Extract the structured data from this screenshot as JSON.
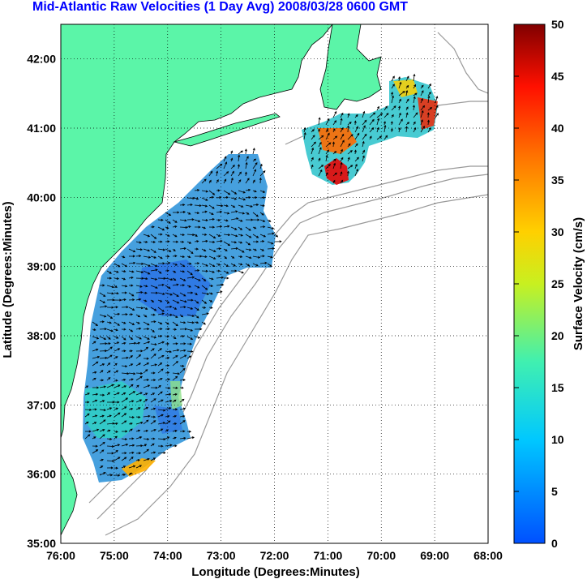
{
  "title": "Mid-Atlantic Raw Velocities (1 Day Avg) 2008/03/28 0600 GMT",
  "xlabel": "Longitude (Degrees:Minutes)",
  "ylabel": "Latitude (Degrees:Minutes)",
  "colorbar_label": "Surface Velocity (cm/s)",
  "x_ticks": [
    "76:00",
    "75:00",
    "74:00",
    "73:00",
    "72:00",
    "71:00",
    "70:00",
    "69:00",
    "68:00"
  ],
  "y_ticks": [
    "42:00",
    "41:00",
    "40:00",
    "39:00",
    "38:00",
    "37:00",
    "36:00",
    "35:00"
  ],
  "colorbar_ticks": [
    "50",
    "45",
    "40",
    "35",
    "30",
    "25",
    "20",
    "15",
    "10",
    "5",
    "0"
  ],
  "colors": {
    "land": "#5bf5a8",
    "title": "#0000ff",
    "bathymetry": "#999999"
  },
  "chart_data": {
    "type": "heatmap",
    "title": "Mid-Atlantic Raw Velocities (1 Day Avg) 2008/03/28 0600 GMT",
    "xlabel": "Longitude (Degrees:Minutes)",
    "ylabel": "Latitude (Degrees:Minutes)",
    "colorbar_label": "Surface Velocity (cm/s)",
    "xlim": [
      -76.0,
      -68.0
    ],
    "ylim": [
      35.0,
      42.5
    ],
    "clim": [
      0,
      50
    ],
    "grid": true,
    "colormap": "jet"
  }
}
